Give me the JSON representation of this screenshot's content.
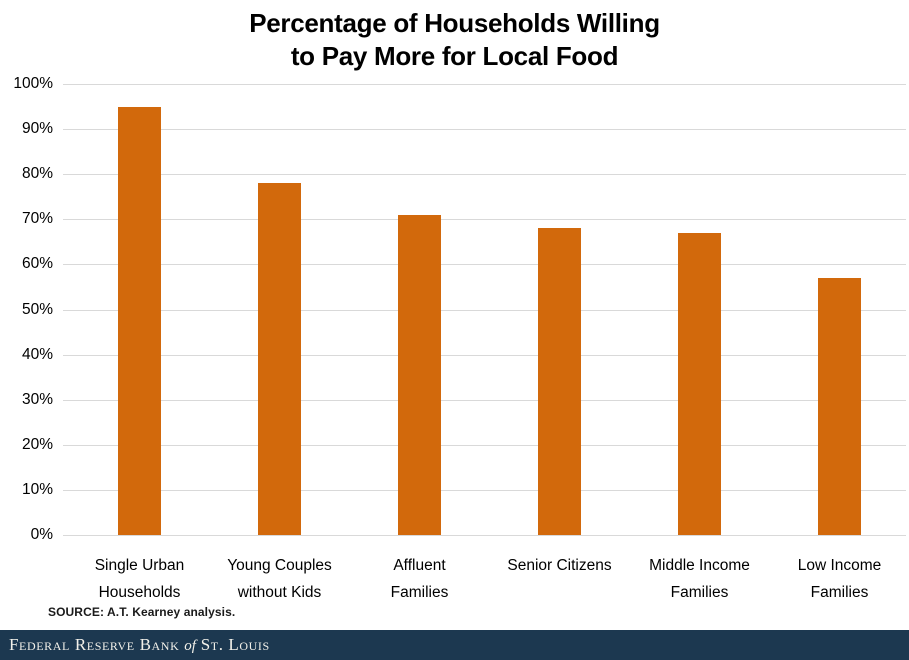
{
  "title": {
    "line1": "Percentage of Households Willing",
    "line2": "to Pay More for Local Food"
  },
  "chart_data": {
    "type": "bar",
    "title": "Percentage of Households Willing to Pay More for Local Food",
    "categories": [
      "Single Urban Households",
      "Young Couples without Kids",
      "Affluent Families",
      "Senior Citizens",
      "Middle Income Families",
      "Low Income Families"
    ],
    "category_label_lines": [
      [
        "Single Urban",
        "Households"
      ],
      [
        "Young Couples",
        "without Kids"
      ],
      [
        "Affluent",
        "Families"
      ],
      [
        "Senior Citizens"
      ],
      [
        "Middle Income",
        "Families"
      ],
      [
        "Low Income",
        "Families"
      ]
    ],
    "values": [
      95,
      78,
      71,
      68,
      67,
      57
    ],
    "unit": "%",
    "xlabel": "",
    "ylabel": "",
    "ylim": [
      0,
      100
    ],
    "ytick_step": 10,
    "yticks": [
      "100%",
      "90%",
      "80%",
      "70%",
      "60%",
      "50%",
      "40%",
      "30%",
      "20%",
      "10%",
      "0%"
    ],
    "grid": true,
    "legend": false,
    "bar_color": "#d2690c",
    "gridline_color": "#d9d9d9"
  },
  "source": {
    "label": "SOURCE: A.T. Kearney analysis."
  },
  "footer": {
    "part1": "Federal Reserve Bank ",
    "conjunction": "of",
    "part2": " St. Louis",
    "background_color": "#1c3850",
    "text_color": "#f2f1ea"
  }
}
